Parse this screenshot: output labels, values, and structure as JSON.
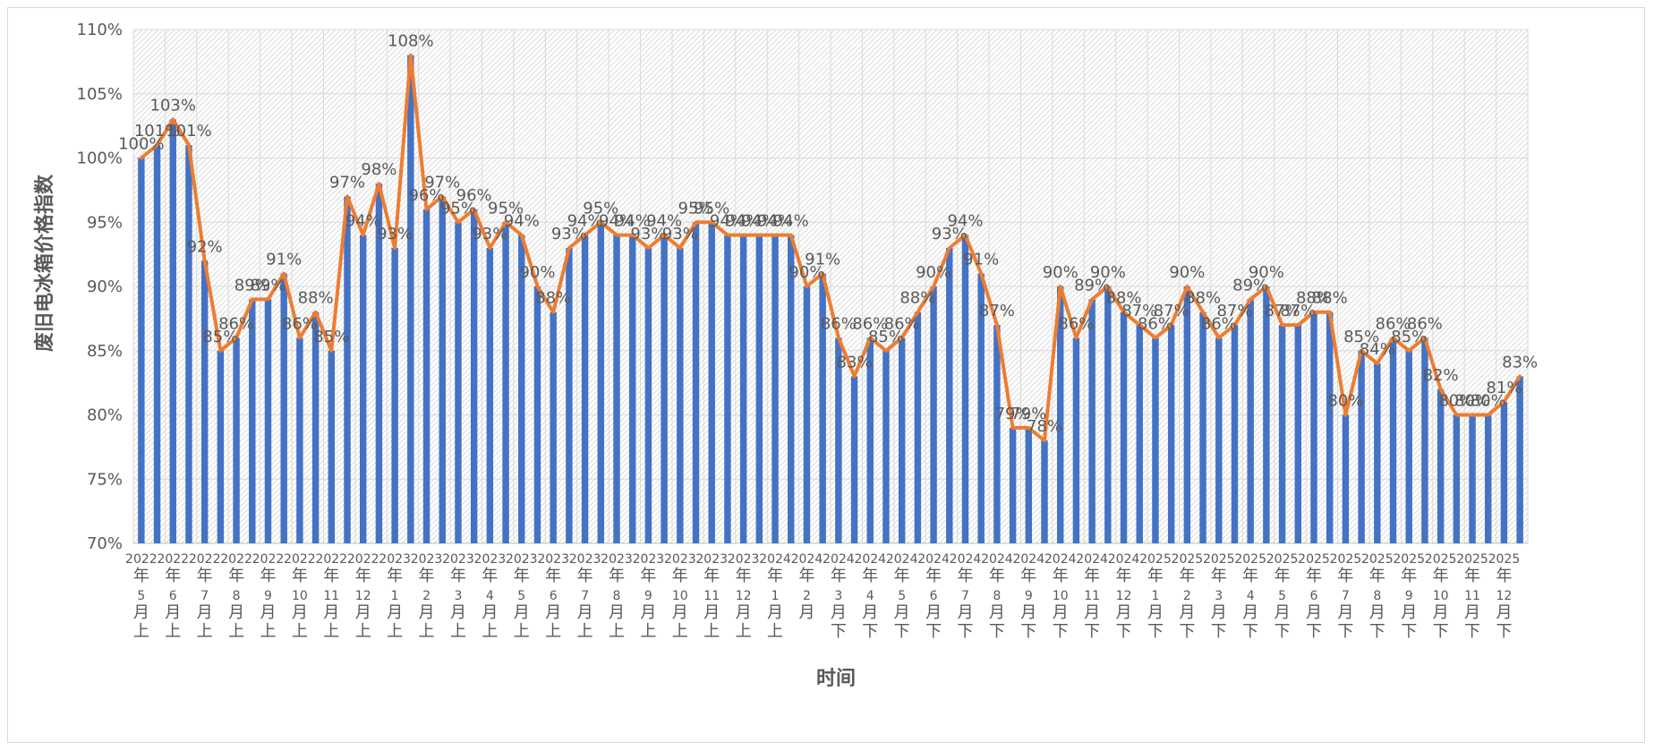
{
  "chart_data": {
    "type": "bar",
    "title": "",
    "xlabel": "时间",
    "ylabel": "废旧电冰箱价格指数",
    "ylim": [
      70,
      110
    ],
    "y_ticks": [
      "70%",
      "75%",
      "80%",
      "85%",
      "90%",
      "95%",
      "100%",
      "105%",
      "110%"
    ],
    "grid": true,
    "legend": "none",
    "colors": {
      "bar": "#4472c4",
      "line": "#ed7d31",
      "grid": "#d9d9d9",
      "text": "#595959"
    },
    "series": [
      {
        "name": "柱",
        "type": "bar",
        "values": [
          100,
          101,
          103,
          101,
          92,
          85,
          86,
          89,
          89,
          91,
          86,
          88,
          85,
          97,
          94,
          98,
          93,
          108,
          96,
          97,
          95,
          96,
          93,
          95,
          94,
          90,
          88,
          93,
          94,
          95,
          94,
          94,
          93,
          94,
          93,
          95,
          95,
          94,
          94,
          94,
          94,
          94,
          90,
          91,
          86,
          83,
          86,
          85,
          86,
          88,
          90,
          93,
          94,
          91,
          87,
          79,
          79,
          78,
          90,
          86,
          89,
          90,
          88,
          87,
          86,
          87,
          90,
          88,
          86,
          87,
          89,
          90,
          87,
          87,
          88,
          88,
          80,
          85,
          84,
          86,
          85,
          86,
          82,
          80,
          80,
          80,
          81,
          83
        ]
      },
      {
        "name": "线",
        "type": "line",
        "values": [
          100,
          101,
          103,
          101,
          92,
          85,
          86,
          89,
          89,
          91,
          86,
          88,
          85,
          97,
          94,
          98,
          93,
          108,
          96,
          97,
          95,
          96,
          93,
          95,
          94,
          90,
          88,
          93,
          94,
          95,
          94,
          94,
          93,
          94,
          93,
          95,
          95,
          94,
          94,
          94,
          94,
          94,
          90,
          91,
          86,
          83,
          86,
          85,
          86,
          88,
          90,
          93,
          94,
          91,
          87,
          79,
          79,
          78,
          90,
          86,
          89,
          90,
          88,
          87,
          86,
          87,
          90,
          88,
          86,
          87,
          89,
          90,
          87,
          87,
          88,
          88,
          80,
          85,
          84,
          86,
          85,
          86,
          82,
          80,
          80,
          80,
          81,
          83
        ]
      }
    ],
    "data_labels": [
      "100%",
      "101%",
      "103%",
      "101%",
      "92%",
      "85%",
      "86%",
      "89%",
      "89%",
      "91%",
      "86%",
      "88%",
      "85%",
      "97%",
      "94%",
      "98%",
      "93%",
      "108%",
      "96%",
      "97%",
      "95%",
      "96%",
      "93%",
      "95%",
      "94%",
      "90%",
      "88%",
      "93%",
      "94%",
      "95%",
      "94%",
      "94%",
      "93%",
      "94%",
      "93%",
      "95%",
      "95%",
      "94%",
      "94%",
      "94%",
      "94%",
      "94%",
      "90%",
      "91%",
      "86%",
      "83%",
      "86%",
      "85%",
      "86%",
      "88%",
      "90%",
      "93%",
      "94%",
      "91%",
      "87%",
      "79%",
      "79%",
      "78%",
      "90%",
      "86%",
      "89%",
      "90%",
      "88%",
      "87%",
      "86%",
      "87%",
      "90%",
      "88%",
      "86%",
      "87%",
      "89%",
      "90%",
      "87%",
      "87%",
      "88%",
      "88%",
      "80%",
      "85%",
      "84%",
      "86%",
      "85%",
      "86%",
      "82%",
      "80%",
      "80%",
      "80%",
      "81%",
      "83%"
    ],
    "tick_labels": [
      "2022年5月上",
      "2022年6月上",
      "2022年7月上",
      "2022年8月上",
      "2022年9月上",
      "2022年10月上",
      "2022年11月上",
      "2022年12月上",
      "2023年1月上",
      "2023年2月上",
      "2023年3月上",
      "2023年4月上",
      "2023年5月上",
      "2023年6月上",
      "2023年7月上",
      "2023年8月上",
      "2023年9月上",
      "2023年10月上",
      "2023年11月上",
      "2023年12月上",
      "2024年1月上",
      "2024年2月",
      "2024年3月下",
      "2024年4月下",
      "2024年5月下",
      "2024年6月下",
      "2024年7月下",
      "2024年8月下",
      "2024年9月下",
      "2024年10月下",
      "2024年11月下",
      "2024年12月下",
      "2025年1月下",
      "2025年2月下",
      "2025年3月下",
      "2025年4月下",
      "2025年5月下",
      "2025年6月下",
      "2025年7月下",
      "2025年8月下",
      "2025年9月下",
      "2025年10月下",
      "2025年11月下",
      "2025年12月下"
    ]
  }
}
